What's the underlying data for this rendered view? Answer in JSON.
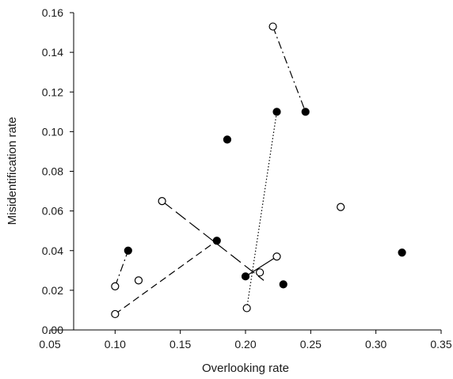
{
  "chart_data": {
    "type": "scatter",
    "xlabel": "Overlooking rate",
    "ylabel": "Misidentification rate",
    "xlim": [
      0.05,
      0.35
    ],
    "ylim": [
      0.0,
      0.16
    ],
    "x_ticks": [
      "0.05",
      "0.10",
      "0.15",
      "0.20",
      "0.25",
      "0.30",
      "0.35"
    ],
    "y_ticks": [
      "0.00",
      "0.02",
      "0.04",
      "0.06",
      "0.08",
      "0.10",
      "0.12",
      "0.14",
      "0.16"
    ],
    "grid": false,
    "legend": "none",
    "series": [
      {
        "marker": "filled-circle",
        "color": "#000000",
        "points": [
          {
            "x": 0.11,
            "y": 0.04
          },
          {
            "x": 0.178,
            "y": 0.045
          },
          {
            "x": 0.186,
            "y": 0.096
          },
          {
            "x": 0.2,
            "y": 0.027
          },
          {
            "x": 0.224,
            "y": 0.11
          },
          {
            "x": 0.229,
            "y": 0.023
          },
          {
            "x": 0.246,
            "y": 0.11
          },
          {
            "x": 0.32,
            "y": 0.039
          }
        ]
      },
      {
        "marker": "open-circle",
        "color": "#000000",
        "points": [
          {
            "x": 0.1,
            "y": 0.008
          },
          {
            "x": 0.1,
            "y": 0.022
          },
          {
            "x": 0.118,
            "y": 0.025
          },
          {
            "x": 0.136,
            "y": 0.065
          },
          {
            "x": 0.201,
            "y": 0.011
          },
          {
            "x": 0.211,
            "y": 0.029
          },
          {
            "x": 0.221,
            "y": 0.153
          },
          {
            "x": 0.224,
            "y": 0.037
          },
          {
            "x": 0.273,
            "y": 0.062
          }
        ]
      }
    ],
    "connectors": [
      {
        "style": "dash-dot",
        "from": {
          "x": 0.1,
          "y": 0.022
        },
        "to": {
          "x": 0.11,
          "y": 0.04
        }
      },
      {
        "style": "dashed",
        "from": {
          "x": 0.1,
          "y": 0.008
        },
        "to": {
          "x": 0.178,
          "y": 0.045
        }
      },
      {
        "style": "long-dash",
        "from": {
          "x": 0.136,
          "y": 0.065
        },
        "to": {
          "x": 0.214,
          "y": 0.025
        }
      },
      {
        "style": "solid",
        "from": {
          "x": 0.2,
          "y": 0.027
        },
        "to": {
          "x": 0.224,
          "y": 0.037
        }
      },
      {
        "style": "dotted",
        "from": {
          "x": 0.201,
          "y": 0.011
        },
        "to": {
          "x": 0.224,
          "y": 0.11
        }
      },
      {
        "style": "dash-dot",
        "from": {
          "x": 0.221,
          "y": 0.153
        },
        "to": {
          "x": 0.246,
          "y": 0.11
        }
      }
    ]
  }
}
